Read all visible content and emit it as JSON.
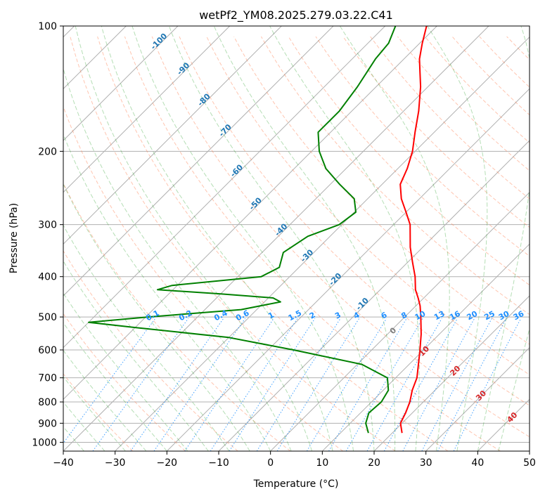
{
  "title": "wetPf2_YM08.2025.279.03.22.C41",
  "chart_data": {
    "type": "skew-t",
    "title": "wetPf2_YM08.2025.279.03.22.C41",
    "xlabel": "Temperature (°C)",
    "ylabel": "Pressure (hPa)",
    "xlim": [
      -40,
      50
    ],
    "ylim": [
      1050,
      100
    ],
    "y_scale": "log",
    "x_ticks": [
      -40,
      -30,
      -20,
      -10,
      0,
      10,
      20,
      30,
      40,
      50
    ],
    "y_ticks": [
      100,
      200,
      300,
      400,
      500,
      600,
      700,
      800,
      900,
      1000
    ],
    "grid": true,
    "series": [
      {
        "kind": "temperature",
        "color": "#ff0000",
        "points": [
          {
            "p": 950,
            "t": 21.9
          },
          {
            "p": 900,
            "t": 19.7
          },
          {
            "p": 850,
            "t": 18.7
          },
          {
            "p": 800,
            "t": 17.4
          },
          {
            "p": 750,
            "t": 15.6
          },
          {
            "p": 700,
            "t": 14.1
          },
          {
            "p": 650,
            "t": 11.8
          },
          {
            "p": 600,
            "t": 9.3
          },
          {
            "p": 550,
            "t": 6.5
          },
          {
            "p": 500,
            "t": 3.1
          },
          {
            "p": 470,
            "t": 0.8
          },
          {
            "p": 450,
            "t": -1.1
          },
          {
            "p": 430,
            "t": -3.2
          },
          {
            "p": 400,
            "t": -5.8
          },
          {
            "p": 370,
            "t": -9.0
          },
          {
            "p": 340,
            "t": -12.4
          },
          {
            "p": 300,
            "t": -16.8
          },
          {
            "p": 280,
            "t": -20.0
          },
          {
            "p": 260,
            "t": -23.5
          },
          {
            "p": 240,
            "t": -26.5
          },
          {
            "p": 220,
            "t": -28.2
          },
          {
            "p": 200,
            "t": -30.5
          },
          {
            "p": 180,
            "t": -33.7
          },
          {
            "p": 160,
            "t": -37.1
          },
          {
            "p": 140,
            "t": -41.4
          },
          {
            "p": 130,
            "t": -44.1
          },
          {
            "p": 120,
            "t": -47.0
          },
          {
            "p": 110,
            "t": -49.5
          },
          {
            "p": 100,
            "t": -52.0
          }
        ]
      },
      {
        "kind": "dewpoint",
        "color": "#008000",
        "points": [
          {
            "p": 950,
            "t": 15.4
          },
          {
            "p": 900,
            "t": 13.0
          },
          {
            "p": 850,
            "t": 11.6
          },
          {
            "p": 800,
            "t": 11.9
          },
          {
            "p": 750,
            "t": 11.0
          },
          {
            "p": 700,
            "t": 8.4
          },
          {
            "p": 650,
            "t": 0.9
          },
          {
            "p": 600,
            "t": -15.1
          },
          {
            "p": 560,
            "t": -30.0
          },
          {
            "p": 530,
            "t": -50.0
          },
          {
            "p": 515,
            "t": -60.0
          },
          {
            "p": 500,
            "t": -49.5
          },
          {
            "p": 480,
            "t": -33.0
          },
          {
            "p": 460,
            "t": -26.9
          },
          {
            "p": 450,
            "t": -29.1
          },
          {
            "p": 440,
            "t": -40.0
          },
          {
            "p": 430,
            "t": -53.0
          },
          {
            "p": 420,
            "t": -51.0
          },
          {
            "p": 400,
            "t": -35.5
          },
          {
            "p": 380,
            "t": -33.8
          },
          {
            "p": 350,
            "t": -35.9
          },
          {
            "p": 320,
            "t": -34.3
          },
          {
            "p": 300,
            "t": -30.5
          },
          {
            "p": 280,
            "t": -29.7
          },
          {
            "p": 260,
            "t": -32.6
          },
          {
            "p": 240,
            "t": -38.2
          },
          {
            "p": 220,
            "t": -43.9
          },
          {
            "p": 200,
            "t": -48.5
          },
          {
            "p": 180,
            "t": -52.4
          },
          {
            "p": 160,
            "t": -52.4
          },
          {
            "p": 140,
            "t": -53.6
          },
          {
            "p": 120,
            "t": -55.5
          },
          {
            "p": 110,
            "t": -56.0
          },
          {
            "p": 100,
            "t": -58.0
          }
        ]
      }
    ],
    "annotations": {
      "mixing_ratio_labels": [
        "0.1",
        "0.2",
        "0.4",
        "0.6",
        "1",
        "1.5",
        "2",
        "3",
        "4",
        "6",
        "8",
        "10",
        "13",
        "16",
        "20",
        "25",
        "30",
        "36"
      ],
      "dry_adiabat_labels": [
        "-100",
        "-90",
        "-80",
        "-70",
        "-60",
        "-50",
        "-40",
        "-30",
        "-20",
        "-10"
      ],
      "moist_adiabat_labels": [
        "0",
        "10",
        "20",
        "30",
        "40"
      ]
    }
  }
}
